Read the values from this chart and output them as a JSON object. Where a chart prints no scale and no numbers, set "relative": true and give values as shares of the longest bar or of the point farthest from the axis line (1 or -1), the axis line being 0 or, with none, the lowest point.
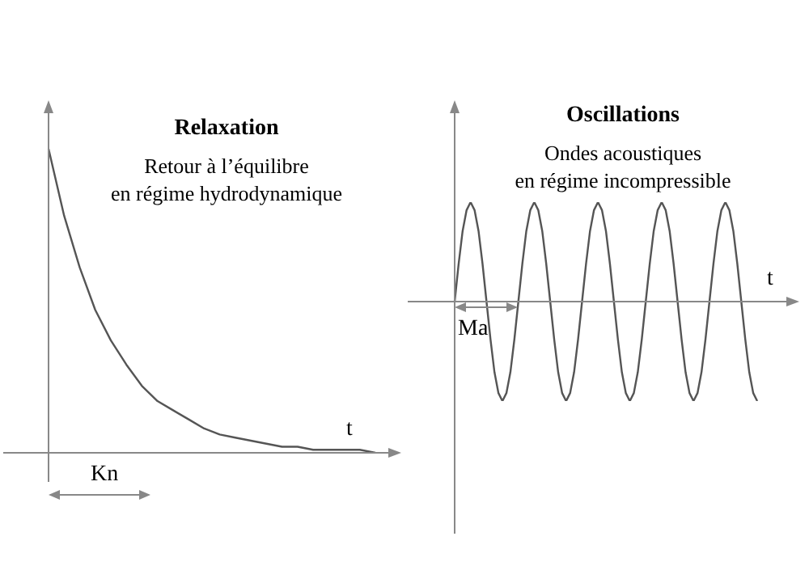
{
  "chart_data": [
    {
      "type": "line",
      "title": "Relaxation",
      "subtitle": "Retour à l’équilibre\nen régime hydrodynamique",
      "xlabel": "t",
      "annotations": [
        "Kn"
      ],
      "relative": true,
      "marker": "none",
      "line_style": "solid",
      "grid": false,
      "legend": false,
      "categories": [
        null,
        null,
        null,
        null,
        null,
        null,
        null,
        null,
        null,
        null,
        null,
        null,
        null,
        null,
        null,
        null,
        null,
        null,
        null,
        null,
        null,
        null
      ],
      "series": [
        {
          "color": "#555555",
          "values": [
            1,
            0.78,
            0.61,
            0.47,
            0.37,
            0.29,
            0.22,
            0.17,
            0.14,
            0.11,
            0.08,
            0.06,
            0.05,
            0.04,
            0.03,
            0.02,
            0.02,
            0.01,
            0.01,
            0.01,
            0.01,
            0
          ]
        }
      ]
    },
    {
      "type": "line",
      "title": "Oscillations",
      "subtitle": "Ondes acoustiques\nen régime incompressible",
      "xlabel": "t",
      "annotations": [
        "Ma"
      ],
      "relative": true,
      "marker": "none",
      "line_style": "solid",
      "grid": false,
      "legend": false,
      "categories": [
        null,
        null,
        null,
        null,
        null,
        null,
        null,
        null,
        null,
        null,
        null,
        null,
        null,
        null,
        null,
        null,
        null,
        null,
        null,
        null,
        null,
        null,
        null,
        null,
        null,
        null,
        null,
        null,
        null,
        null,
        null,
        null,
        null,
        null,
        null,
        null,
        null,
        null,
        null,
        null,
        null,
        null,
        null,
        null,
        null,
        null,
        null,
        null,
        null,
        null,
        null,
        null,
        null,
        null,
        null,
        null,
        null,
        null,
        null,
        null,
        null,
        null,
        null,
        null,
        null,
        null,
        null,
        null,
        null,
        null,
        null,
        null,
        null,
        null,
        null,
        null,
        null
      ],
      "series": [
        {
          "color": "#555555",
          "values": [
            0,
            0.38,
            0.71,
            0.92,
            1,
            0.92,
            0.71,
            0.38,
            0,
            -0.38,
            -0.71,
            -0.92,
            -1,
            -0.92,
            -0.71,
            -0.38,
            0,
            0.38,
            0.71,
            0.92,
            1,
            0.92,
            0.71,
            0.38,
            0,
            -0.38,
            -0.71,
            -0.92,
            -1,
            -0.92,
            -0.71,
            -0.38,
            0,
            0.38,
            0.71,
            0.92,
            1,
            0.92,
            0.71,
            0.38,
            0,
            -0.38,
            -0.71,
            -0.92,
            -1,
            -0.92,
            -0.71,
            -0.38,
            0,
            0.38,
            0.71,
            0.92,
            1,
            0.92,
            0.71,
            0.38,
            0,
            -0.38,
            -0.71,
            -0.92,
            -1,
            -0.92,
            -0.71,
            -0.38,
            0,
            0.38,
            0.71,
            0.92,
            1,
            0.92,
            0.71,
            0.38,
            0,
            -0.38,
            -0.71,
            -0.92,
            -1
          ]
        }
      ]
    }
  ]
}
